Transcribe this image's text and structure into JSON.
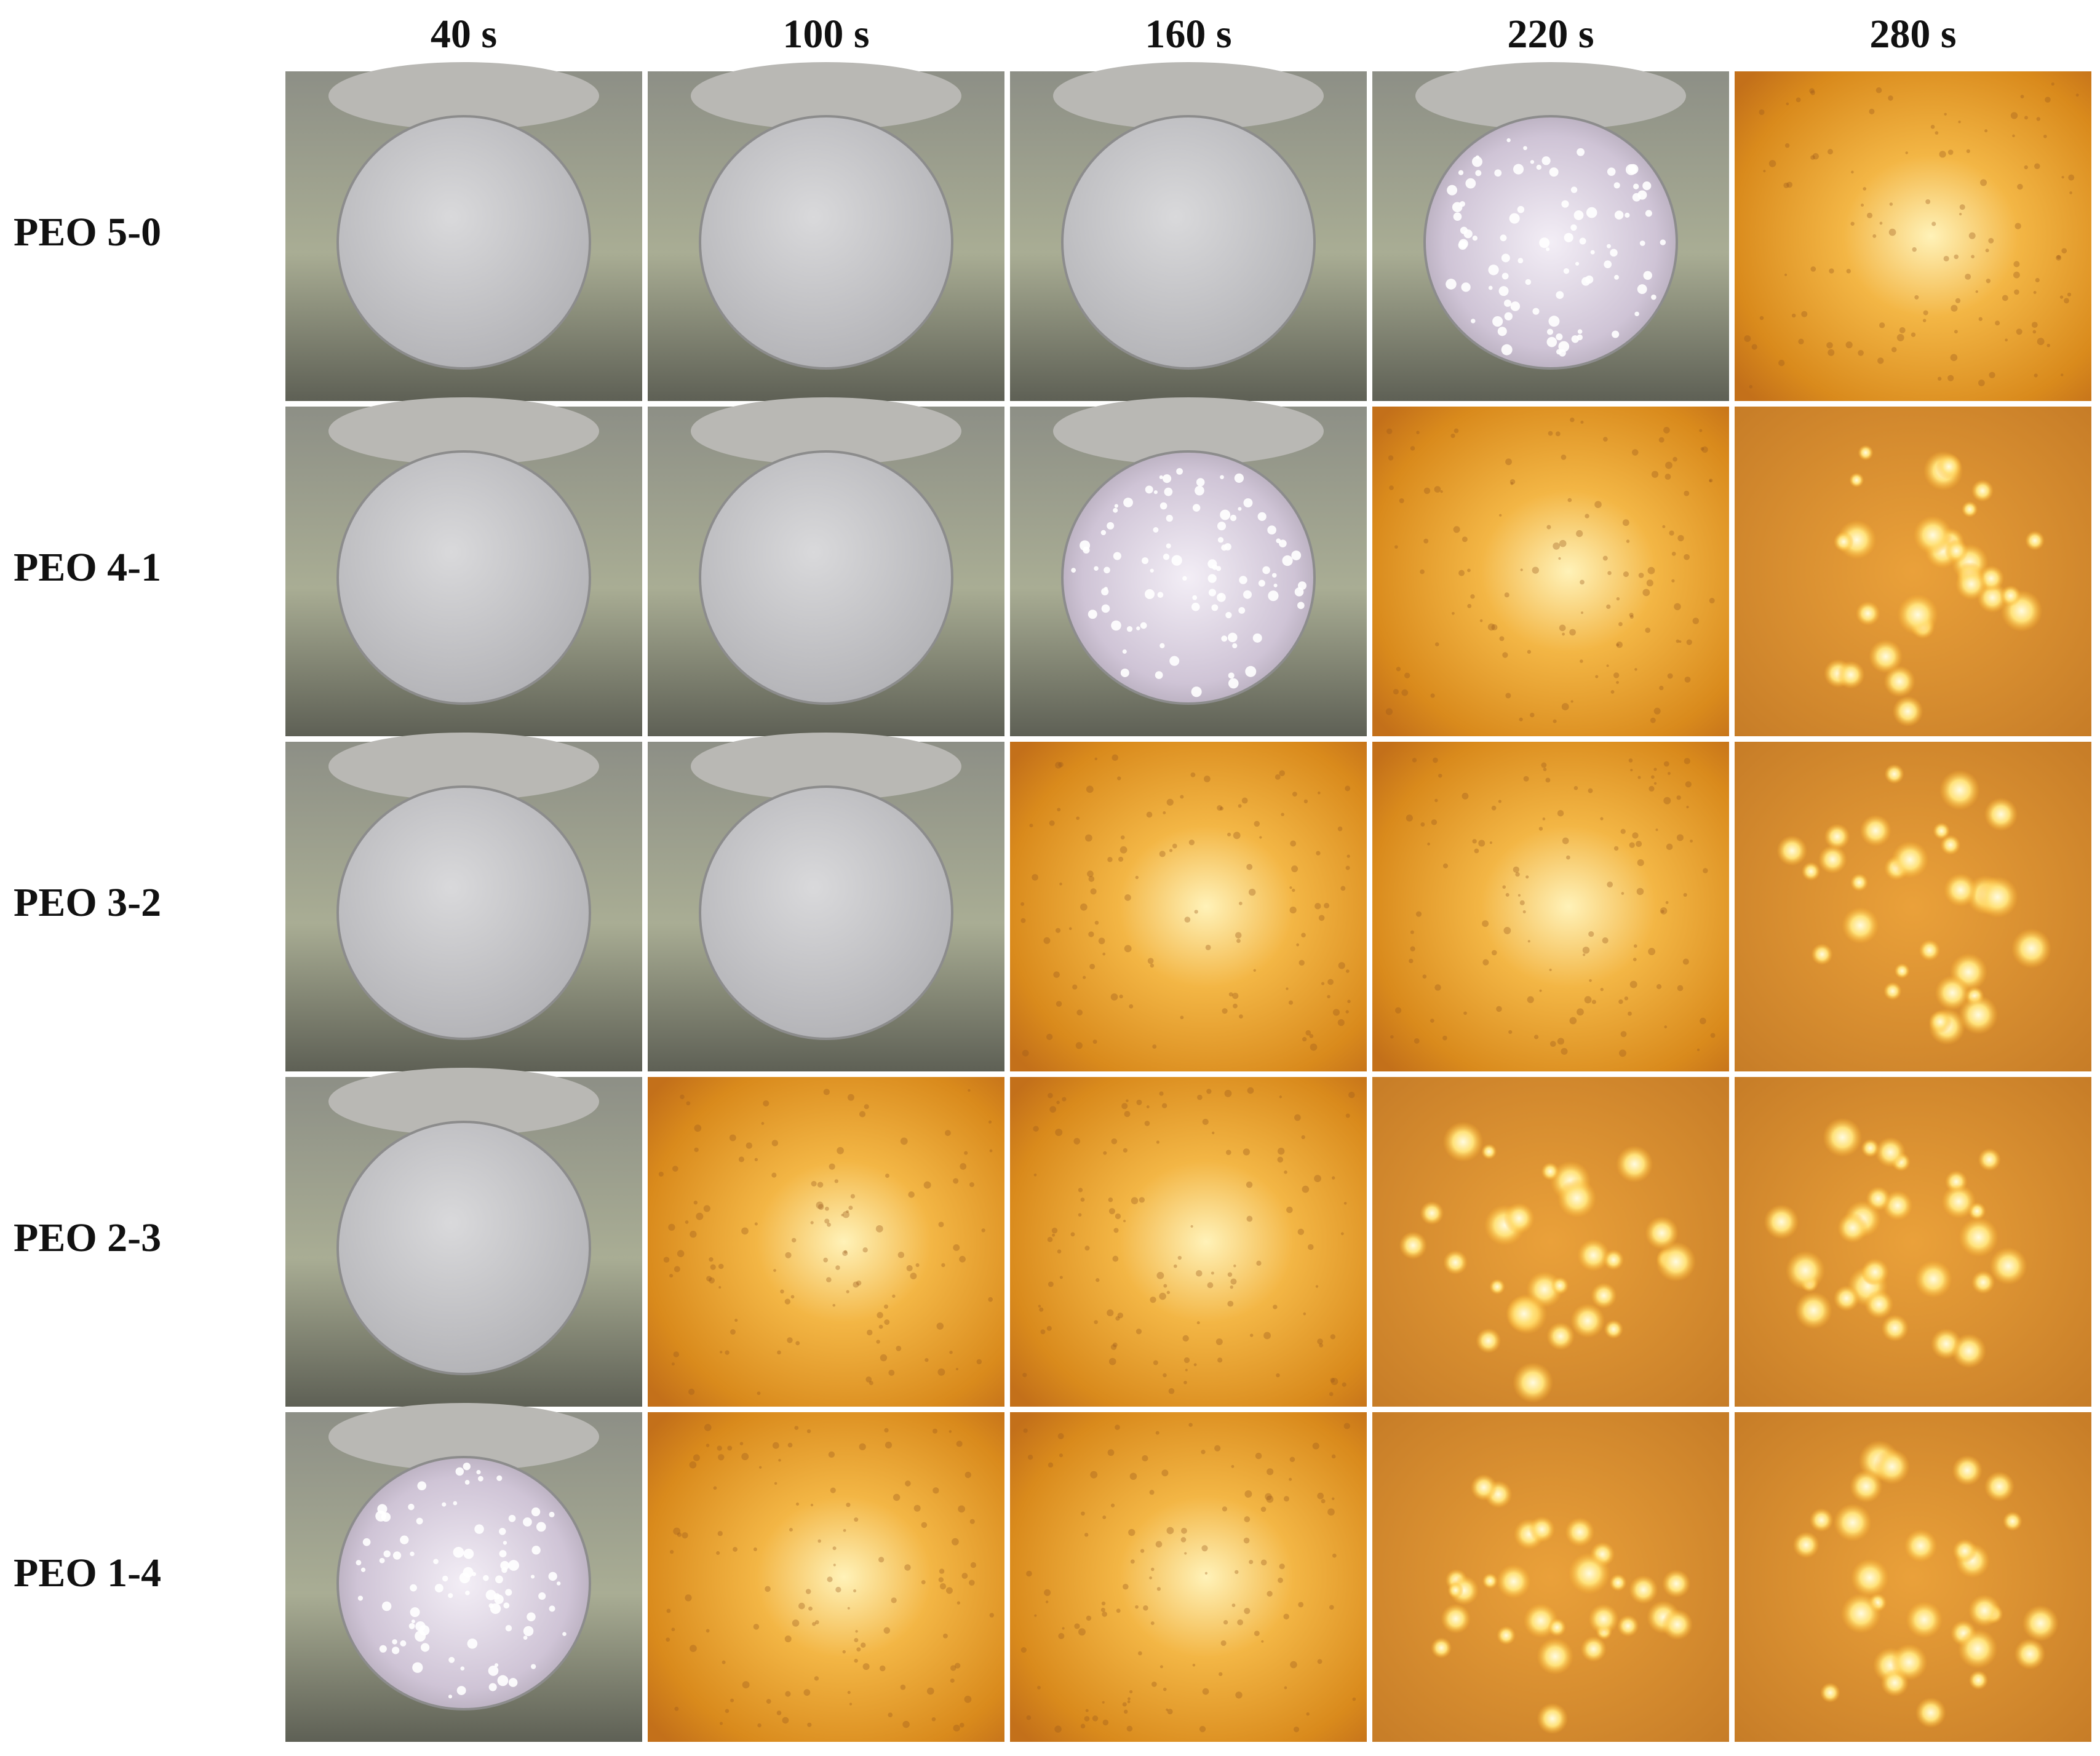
{
  "columns": [
    "40 s",
    "100 s",
    "160 s",
    "220 s",
    "280 s"
  ],
  "rows": [
    "PEO 5-0",
    "PEO 4-1",
    "PEO 3-2",
    "PEO 2-3",
    "PEO 1-4"
  ]
}
